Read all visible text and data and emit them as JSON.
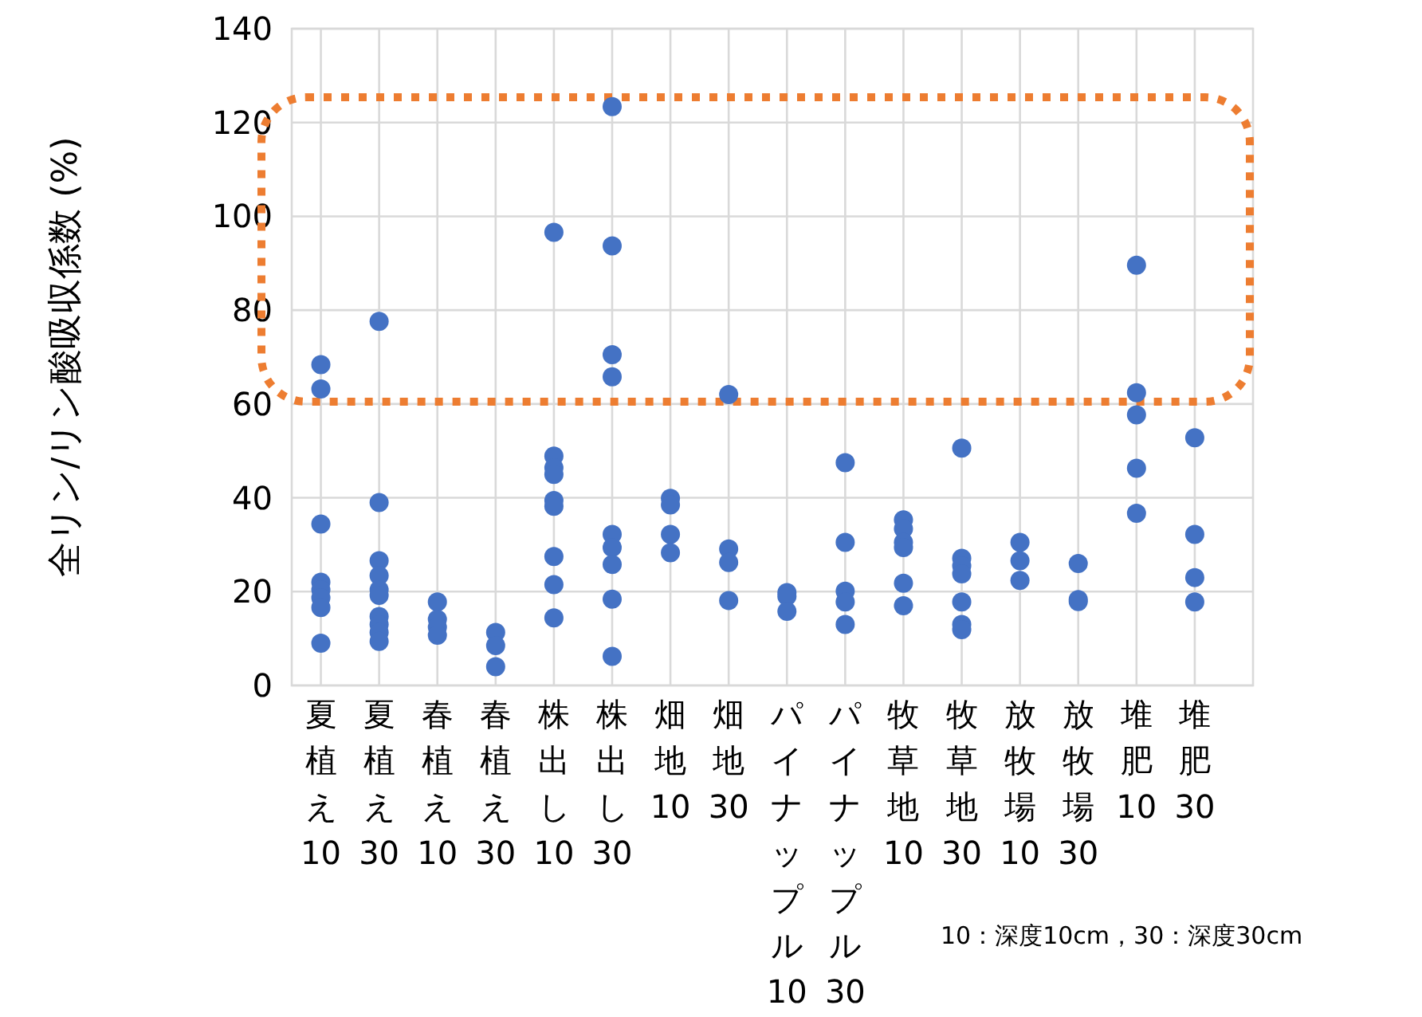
{
  "chart_data": {
    "type": "scatter",
    "ylabel": "全リン/リン酸吸収係数 (%)",
    "categories": [
      "夏植え10",
      "夏植え30",
      "春植え10",
      "春植え30",
      "株出し10",
      "株出し30",
      "畑地10",
      "畑地30",
      "パイナップル10",
      "パイナップル30",
      "牧草地10",
      "牧草地30",
      "放牧場10",
      "放牧場30",
      "堆肥10",
      "堆肥30"
    ],
    "series": [
      {
        "color": "#4472c4",
        "x": [
          "夏植え10",
          "夏植え10",
          "夏植え10",
          "夏植え10",
          "夏植え10",
          "夏植え10",
          "夏植え10",
          "夏植え10",
          "夏植え30",
          "夏植え30",
          "夏植え30",
          "夏植え30",
          "夏植え30",
          "夏植え30",
          "夏植え30",
          "夏植え30",
          "夏植え30",
          "夏植え30",
          "春植え10",
          "春植え10",
          "春植え10",
          "春植え10",
          "春植え30",
          "春植え30",
          "春植え30",
          "株出し10",
          "株出し10",
          "株出し10",
          "株出し10",
          "株出し10",
          "株出し10",
          "株出し10",
          "株出し10",
          "株出し10",
          "株出し30",
          "株出し30",
          "株出し30",
          "株出し30",
          "株出し30",
          "株出し30",
          "株出し30",
          "株出し30",
          "株出し30",
          "畑地10",
          "畑地10",
          "畑地10",
          "畑地10",
          "畑地30",
          "畑地30",
          "畑地30",
          "畑地30",
          "パイナップル10",
          "パイナップル10",
          "パイナップル10",
          "パイナップル30",
          "パイナップル30",
          "パイナップル30",
          "パイナップル30",
          "パイナップル30",
          "牧草地10",
          "牧草地10",
          "牧草地10",
          "牧草地10",
          "牧草地10",
          "牧草地10",
          "牧草地30",
          "牧草地30",
          "牧草地30",
          "牧草地30",
          "牧草地30",
          "牧草地30",
          "牧草地30",
          "放牧場10",
          "放牧場10",
          "放牧場10",
          "放牧場30",
          "放牧場30",
          "放牧場30",
          "堆肥10",
          "堆肥10",
          "堆肥10",
          "堆肥10",
          "堆肥10",
          "堆肥30",
          "堆肥30",
          "堆肥30",
          "堆肥30"
        ],
        "values": [
          68.4,
          63.2,
          34.4,
          22,
          20.4,
          18.7,
          16.6,
          9,
          77.6,
          39,
          26.6,
          23.4,
          20.4,
          19.2,
          14.7,
          13,
          11.3,
          9.4,
          17.8,
          14.1,
          12.4,
          10.7,
          11.3,
          8.5,
          4,
          96.6,
          48.9,
          46.4,
          45,
          39.4,
          38.2,
          27.5,
          21.5,
          14.4,
          123.4,
          93.7,
          70.5,
          65.8,
          32.2,
          29.4,
          25.8,
          18.4,
          6.2,
          39.9,
          38.5,
          32.2,
          28.3,
          62,
          29.1,
          26.2,
          18.1,
          19.8,
          19,
          15.8,
          47.5,
          30.5,
          20.1,
          17.8,
          13,
          35.3,
          33.4,
          30.5,
          29.4,
          21.8,
          17,
          50.6,
          27.1,
          25.5,
          23.8,
          17.8,
          13,
          11.9,
          30.5,
          26.6,
          22.4,
          26,
          18.3,
          17.9,
          89.6,
          62.4,
          57.7,
          46.3,
          36.7,
          52.8,
          32.2,
          23,
          17.8
        ]
      }
    ],
    "ylim": [
      0,
      140
    ],
    "yticks": [
      0,
      20,
      40,
      60,
      80,
      100,
      120,
      140
    ],
    "grid": true,
    "marker": "circle",
    "annotations": [
      "10：深度10cm，30：深度30cm"
    ]
  }
}
